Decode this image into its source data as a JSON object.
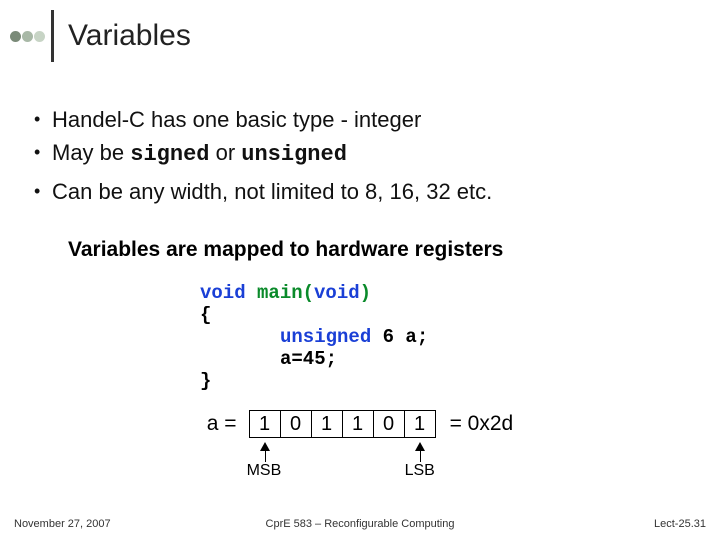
{
  "title": "Variables",
  "dot_colors": [
    "#7a8a78",
    "#a8b8a6",
    "#c7d4c5"
  ],
  "vbar_color": "#333333",
  "bullets": [
    {
      "prefix": "Handel-C has one basic type - integer"
    },
    {
      "prefix": "May be ",
      "code1": "signed",
      "mid": " or ",
      "code2": "unsigned"
    },
    {
      "prefix": "Can be any width, not limited to 8, 16, 32 etc."
    }
  ],
  "mapped_line": "Variables are mapped to hardware registers",
  "code": {
    "l1a": "void",
    "l1b": " main(",
    "l1c": "void",
    "l1d": ")",
    "l2": "{",
    "l3a": "unsigned",
    "l3b": " 6 a;",
    "l4": "a=45;",
    "l5": "}",
    "color_blue": "#1a3fd6",
    "color_green": "#0a8a2a"
  },
  "bits": {
    "label": "a =",
    "cells": [
      "1",
      "0",
      "1",
      "1",
      "0",
      "1"
    ],
    "hex": "= 0x2d",
    "msb": "MSB",
    "lsb": "LSB"
  },
  "footer": {
    "date": "November 27, 2007",
    "center": "CprE 583 – Reconfigurable Computing",
    "right": "Lect-25.31"
  }
}
